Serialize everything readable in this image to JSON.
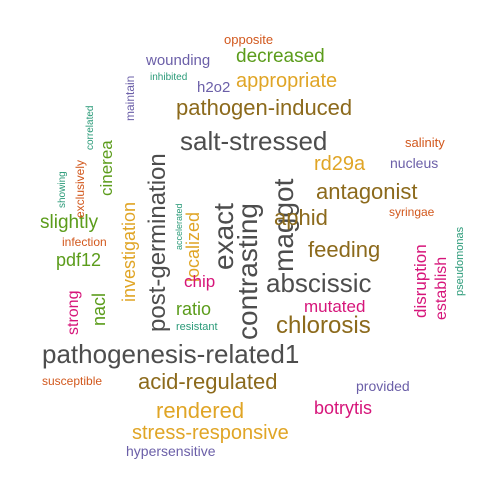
{
  "colors": {
    "background": "#ffffff",
    "gray": "#4d4d4d",
    "brown": "#8c6a1c",
    "gold": "#e0a526",
    "green": "#5b9c1b",
    "orange": "#d2581d",
    "magenta": "#d6157a",
    "purple": "#6b5fa8",
    "teal": "#2a9a78"
  },
  "words": [
    {
      "text": "pathogenesis-related1",
      "color": "gray"
    },
    {
      "text": "abscissic",
      "color": "gray"
    },
    {
      "text": "contrasting",
      "color": "gray"
    },
    {
      "text": "exact",
      "color": "gray"
    },
    {
      "text": "maggot",
      "color": "gray"
    },
    {
      "text": "salt-stressed",
      "color": "gray"
    },
    {
      "text": "post-germination",
      "color": "gray"
    },
    {
      "text": "chlorosis",
      "color": "brown"
    },
    {
      "text": "acid-regulated",
      "color": "brown"
    },
    {
      "text": "antagonist",
      "color": "brown"
    },
    {
      "text": "feeding",
      "color": "brown"
    },
    {
      "text": "aphid",
      "color": "brown"
    },
    {
      "text": "pathogen-induced",
      "color": "brown"
    },
    {
      "text": "rendered",
      "color": "gold"
    },
    {
      "text": "stress-responsive",
      "color": "gold"
    },
    {
      "text": "appropriate",
      "color": "gold"
    },
    {
      "text": "rd29a",
      "color": "gold"
    },
    {
      "text": "investigation",
      "color": "gold"
    },
    {
      "text": "localized",
      "color": "gold"
    },
    {
      "text": "decreased",
      "color": "green"
    },
    {
      "text": "slightly",
      "color": "green"
    },
    {
      "text": "cinerea",
      "color": "green"
    },
    {
      "text": "pdf12",
      "color": "green"
    },
    {
      "text": "nacl",
      "color": "green"
    },
    {
      "text": "ratio",
      "color": "green"
    },
    {
      "text": "mutated",
      "color": "magenta"
    },
    {
      "text": "botrytis",
      "color": "magenta"
    },
    {
      "text": "chip",
      "color": "magenta"
    },
    {
      "text": "disruption",
      "color": "magenta"
    },
    {
      "text": "establish",
      "color": "magenta"
    },
    {
      "text": "strong",
      "color": "magenta"
    },
    {
      "text": "opposite",
      "color": "orange"
    },
    {
      "text": "salinity",
      "color": "orange"
    },
    {
      "text": "exclusively",
      "color": "orange"
    },
    {
      "text": "infection",
      "color": "orange"
    },
    {
      "text": "susceptible",
      "color": "orange"
    },
    {
      "text": "syringae",
      "color": "orange"
    },
    {
      "text": "nucleus",
      "color": "purple"
    },
    {
      "text": "h2o2",
      "color": "purple"
    },
    {
      "text": "wounding",
      "color": "purple"
    },
    {
      "text": "provided",
      "color": "purple"
    },
    {
      "text": "hypersensitive",
      "color": "purple"
    },
    {
      "text": "maintain",
      "color": "purple"
    },
    {
      "text": "correlated",
      "color": "teal"
    },
    {
      "text": "inhibited",
      "color": "teal"
    },
    {
      "text": "showing",
      "color": "teal"
    },
    {
      "text": "accelerated",
      "color": "teal"
    },
    {
      "text": "resistant",
      "color": "teal"
    },
    {
      "text": "pseudomonas",
      "color": "teal"
    }
  ]
}
